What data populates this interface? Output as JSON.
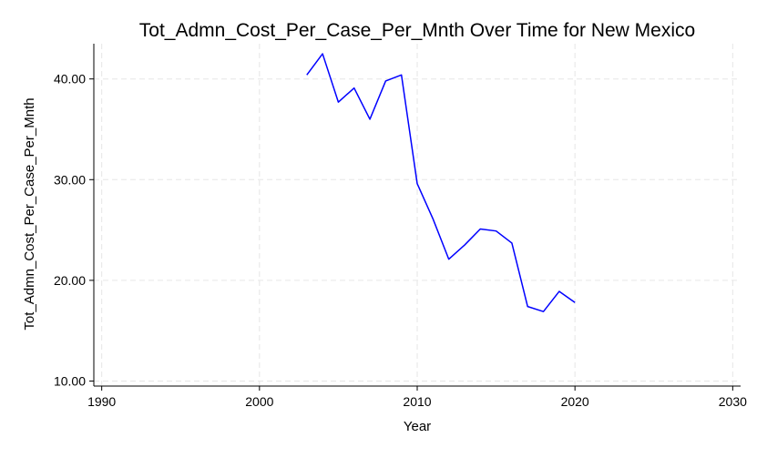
{
  "chart_data": {
    "type": "line",
    "title": "Tot_Admn_Cost_Per_Case_Per_Mnth Over Time for New Mexico",
    "xlabel": "Year",
    "ylabel": "Tot_Admn_Cost_Per_Case_Per_Mnth",
    "xlim": [
      1989.5,
      2030.5
    ],
    "ylim": [
      9.5,
      43.5
    ],
    "x_ticks": [
      1990,
      2000,
      2010,
      2020,
      2030
    ],
    "x_tick_labels": [
      "1990",
      "2000",
      "2010",
      "2020",
      "2030"
    ],
    "y_ticks": [
      10,
      20,
      30,
      40
    ],
    "y_tick_labels": [
      "10.00",
      "20.00",
      "30.00",
      "40.00"
    ],
    "grid": true,
    "series": [
      {
        "color": "#0000ff",
        "x": [
          2003,
          2004,
          2005,
          2006,
          2007,
          2008,
          2009,
          2010,
          2011,
          2012,
          2013,
          2014,
          2015,
          2016,
          2017,
          2018,
          2019,
          2020
        ],
        "y": [
          40.4,
          42.5,
          37.7,
          39.1,
          36.0,
          39.8,
          40.4,
          29.6,
          26.1,
          22.1,
          23.5,
          25.1,
          24.9,
          23.7,
          17.4,
          16.9,
          18.9,
          17.8
        ]
      }
    ]
  }
}
